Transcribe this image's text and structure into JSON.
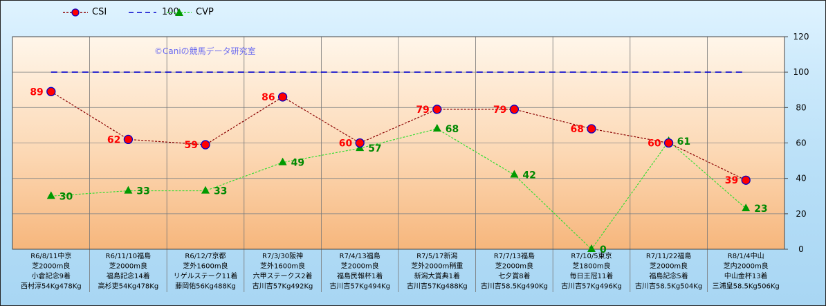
{
  "chart_data": {
    "type": "line",
    "watermark": "©Caniの競馬データ研究室",
    "ylim": [
      0,
      120
    ],
    "yticks": [
      0,
      20,
      40,
      60,
      80,
      100,
      120
    ],
    "grid": true,
    "legend_position": "top-left",
    "categories": [
      [
        "R6/8/11中京",
        "芝2000m良",
        "小倉記念9着",
        "西村淳54Kg478Kg"
      ],
      [
        "R6/11/10福島",
        "芝2000m良",
        "福島記念14着",
        "高杉吏54Kg478Kg"
      ],
      [
        "R6/12/7京都",
        "芝外1600m良",
        "リゲルステーク11着",
        "藤岡佑56Kg488Kg"
      ],
      [
        "R7/3/30阪神",
        "芝外1600m良",
        "六甲ステークス2着",
        "古川吉57Kg492Kg"
      ],
      [
        "R7/4/13福島",
        "芝2000m良",
        "福島民報杯1着",
        "古川吉57Kg494Kg"
      ],
      [
        "R7/5/17新潟",
        "芝外2000m稍重",
        "新潟大賞典1着",
        "古川吉57Kg488Kg"
      ],
      [
        "R7/7/13福島",
        "芝2000m良",
        "七夕賞8着",
        "古川吉58.5Kg490Kg"
      ],
      [
        "R7/10/5東京",
        "芝1800m良",
        "毎日王冠11着",
        "古川吉57Kg496Kg"
      ],
      [
        "R7/11/22福島",
        "芝2000m良",
        "福島記念5着",
        "古川吉58.5Kg504Kg"
      ],
      [
        "R8/1/4中山",
        "芝内2000m良",
        "中山金杯13着",
        "三浦皇58.5Kg506Kg"
      ]
    ],
    "series": [
      {
        "name": "CSI",
        "values": [
          89,
          62,
          59,
          86,
          60,
          79,
          79,
          68,
          60,
          39
        ],
        "color": "#8b0000",
        "marker_color": "#ff0000",
        "marker_edge": "#0000cc",
        "label_color": "#ff0000"
      },
      {
        "name": "100",
        "values": [
          100,
          100,
          100,
          100,
          100,
          100,
          100,
          100,
          100,
          100
        ],
        "color": "#0000cc"
      },
      {
        "name": "CVP",
        "values": [
          30,
          33,
          33,
          49,
          57,
          68,
          42,
          0,
          61,
          23
        ],
        "color": "#33dd33",
        "marker_color": "#009900",
        "label_color": "#008800"
      }
    ]
  }
}
